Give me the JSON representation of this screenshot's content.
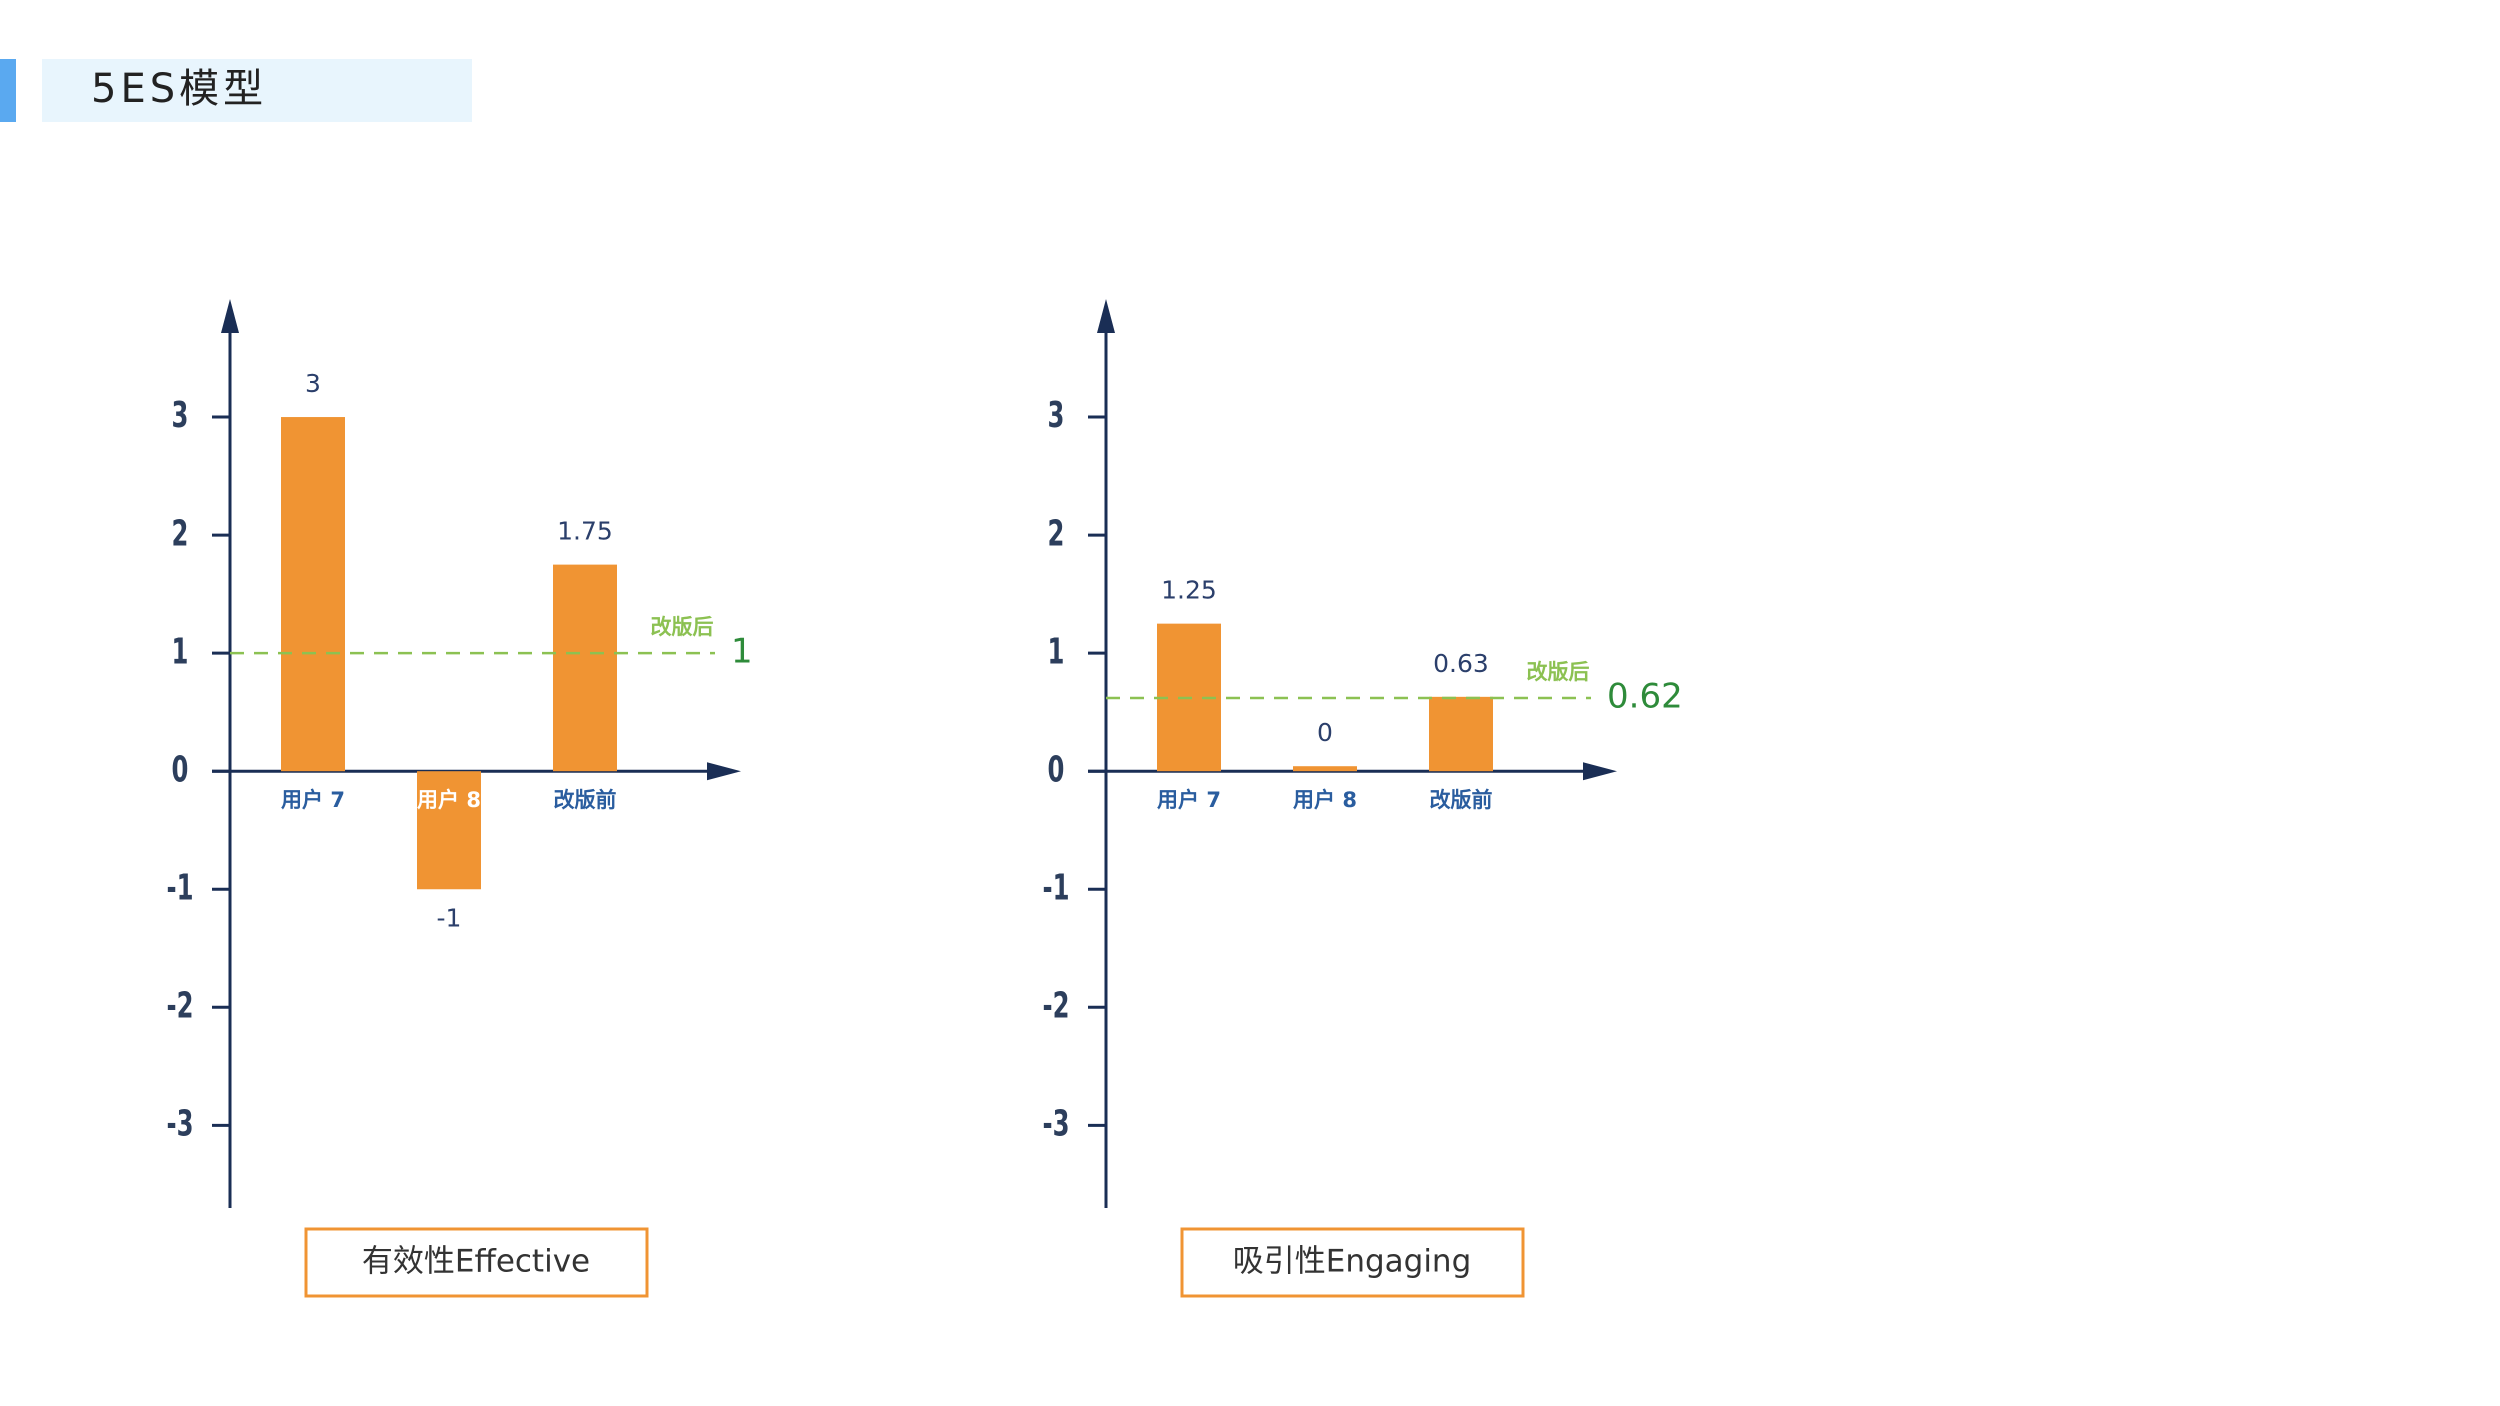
{
  "header": {
    "title": "5ES模型"
  },
  "chart_data": [
    {
      "type": "bar",
      "title": "有效性Effective",
      "categories": [
        "用户 7",
        "用户 8",
        "改版前"
      ],
      "values": [
        3,
        -1,
        1.75
      ],
      "color": "#f09433",
      "ylim": [
        -3.7,
        4
      ],
      "yticks": [
        -3,
        -2,
        -1,
        0,
        1,
        2,
        3
      ],
      "reference_line": {
        "value": 1,
        "label": "改版后",
        "color": "#8cc152"
      }
    },
    {
      "type": "bar",
      "title": "吸引性Engaging",
      "categories": [
        "用户 7",
        "用户 8",
        "改版前"
      ],
      "values": [
        1.25,
        0,
        0.63
      ],
      "color": "#f09433",
      "ylim": [
        -3.7,
        4
      ],
      "yticks": [
        -3,
        -2,
        -1,
        0,
        1,
        2,
        3
      ],
      "reference_line": {
        "value": 0.62,
        "label": "改版后",
        "color": "#8cc152"
      }
    }
  ]
}
